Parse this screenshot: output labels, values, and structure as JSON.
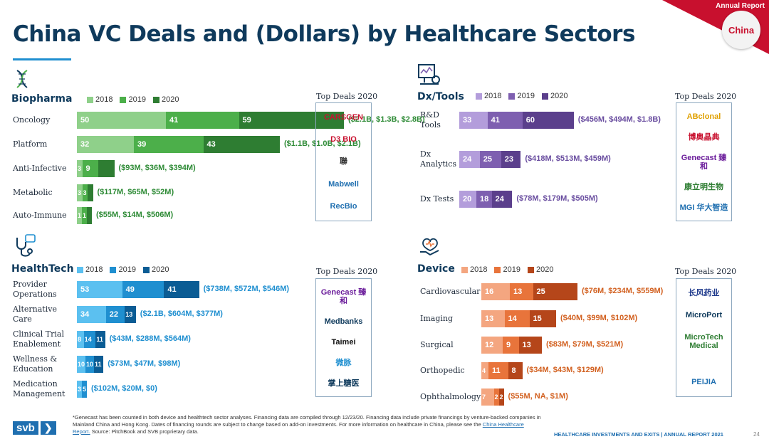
{
  "title": "China VC Deals and (Dollars) by Healthcare Sectors",
  "corner": {
    "label": "Annual Report",
    "badge": "China",
    "accent": "#c8102e"
  },
  "top_deals_label": "Top Deals 2020",
  "chart_data": [
    {
      "type": "bar",
      "sector": "Biopharma",
      "stacked": true,
      "legend": [
        "2018",
        "2019",
        "2020"
      ],
      "colors": [
        "#8fd08a",
        "#4caf4a",
        "#2e7d32"
      ],
      "dollar_color": "#2e8b36",
      "categories": [
        "Oncology",
        "Platform",
        "Anti-Infective",
        "Metabolic",
        "Auto-Immune"
      ],
      "series": [
        {
          "name": "2018",
          "values": [
            50,
            32,
            3,
            3,
            1
          ]
        },
        {
          "name": "2019",
          "values": [
            41,
            39,
            9,
            3,
            1
          ]
        },
        {
          "name": "2020",
          "values": [
            59,
            43,
            9,
            3,
            1
          ]
        }
      ],
      "value_labels": [
        [
          "50",
          "41",
          "59"
        ],
        [
          "32",
          "39",
          "43"
        ],
        [
          "3",
          "9",
          ""
        ],
        [
          "3",
          "3",
          ""
        ],
        [
          "1",
          "1",
          ""
        ]
      ],
      "dollars": [
        "($2.1B, $1.3B, $2.8B)",
        "($1.1B, $1.0B, $2.1B)",
        "($93M, $36M, $394M)",
        "($117M, $65M, $52M)",
        "($55M, $14M, $506M)"
      ],
      "top_deals": [
        "CARSGEN",
        "D3 BIO",
        "聯",
        "Mabwell",
        "RecBio"
      ]
    },
    {
      "type": "bar",
      "sector": "Dx/Tools",
      "stacked": true,
      "legend": [
        "2018",
        "2019",
        "2020"
      ],
      "colors": [
        "#b39ddb",
        "#7e5fb0",
        "#5b3f8c"
      ],
      "dollar_color": "#6a4ea0",
      "categories": [
        "R&D Tools",
        "Dx Analytics",
        "Dx Tests"
      ],
      "series": [
        {
          "name": "2018",
          "values": [
            33,
            24,
            20
          ]
        },
        {
          "name": "2019",
          "values": [
            41,
            25,
            18
          ]
        },
        {
          "name": "2020",
          "values": [
            60,
            23,
            24
          ]
        }
      ],
      "value_labels": [
        [
          "33",
          "41",
          "60"
        ],
        [
          "24",
          "25",
          "23"
        ],
        [
          "20",
          "18",
          "24"
        ]
      ],
      "dollars": [
        "($456M, $494M, $1.8B)",
        "($418M, $513M, $459M)",
        "($78M, $179M, $505M)"
      ],
      "top_deals": [
        "ABclonal",
        "博奥晶典",
        "Genecast 臻和",
        "康立明生物",
        "MGI 华大智造"
      ]
    },
    {
      "type": "bar",
      "sector": "HealthTech",
      "stacked": true,
      "legend": [
        "2018",
        "2019",
        "2020"
      ],
      "colors": [
        "#5bc0f0",
        "#1f8fd0",
        "#0b5c94"
      ],
      "dollar_color": "#1f8fd0",
      "categories": [
        "Provider Operations",
        "Alternative Care",
        "Clinical Trial Enablement",
        "Wellness & Education",
        "Medication Management"
      ],
      "series": [
        {
          "name": "2018",
          "values": [
            53,
            34,
            8,
            10,
            3
          ]
        },
        {
          "name": "2019",
          "values": [
            49,
            22,
            14,
            10,
            5
          ]
        },
        {
          "name": "2020",
          "values": [
            41,
            13,
            11,
            11,
            0
          ]
        }
      ],
      "value_labels": [
        [
          "53",
          "49",
          "41"
        ],
        [
          "34",
          "22",
          "13"
        ],
        [
          "8",
          "14",
          "11"
        ],
        [
          "10",
          "10",
          "11"
        ],
        [
          "3",
          "5",
          ""
        ]
      ],
      "dollars": [
        "($738M, $572M, $546M)",
        "($2.1B, $604M, $377M)",
        "($43M, $288M, $564M)",
        "($73M, $47M, $98M)",
        "($102M, $20M, $0)"
      ],
      "top_deals": [
        "Genecast 臻和",
        "Medbanks",
        "Taimei",
        "微脉",
        "掌上糖医"
      ]
    },
    {
      "type": "bar",
      "sector": "Device",
      "stacked": true,
      "legend": [
        "2018",
        "2019",
        "2020"
      ],
      "colors": [
        "#f4a680",
        "#e8743b",
        "#b5461a"
      ],
      "dollar_color": "#d2601f",
      "categories": [
        "Cardiovascular",
        "Imaging",
        "Surgical",
        "Orthopedic",
        "Ophthalmology"
      ],
      "series": [
        {
          "name": "2018",
          "values": [
            16,
            13,
            12,
            4,
            7
          ]
        },
        {
          "name": "2019",
          "values": [
            13,
            14,
            9,
            11,
            2
          ]
        },
        {
          "name": "2020",
          "values": [
            25,
            15,
            13,
            8,
            2
          ]
        }
      ],
      "value_labels": [
        [
          "16",
          "13",
          "25"
        ],
        [
          "13",
          "14",
          "15"
        ],
        [
          "12",
          "9",
          "13"
        ],
        [
          "4",
          "11",
          "8"
        ],
        [
          "7",
          "2",
          "2"
        ]
      ],
      "dollars": [
        "($76M, $234M, $559M)",
        "($40M, $99M, $102M)",
        "($83M, $79M, $521M)",
        "($34M, $43M, $129M)",
        "($55M, NA, $1M)"
      ],
      "top_deals": [
        "长风药业",
        "MicroPort",
        "MicroTech Medical",
        "",
        "PEIJIA"
      ]
    }
  ],
  "footnote": {
    "text": "*Genecast has been counted in both device and healthtech sector analyses. Financing data are compiled through 12/23/20. Financing data include private financings by venture-backed companies in Mainland China and Hong Kong. Dates of financing rounds are subject to change based on add-on investments. For more information on healthcare in China, please see the",
    "link": "China Healthcare Report.",
    "source": "Source: PitchBook and SVB proprietary data."
  },
  "brand": {
    "name": "svb",
    "arrow": "❯"
  },
  "report_footer": "HEALTHCARE INVESTMENTS AND EXITS | ANNUAL REPORT 2021",
  "page_number": "24"
}
